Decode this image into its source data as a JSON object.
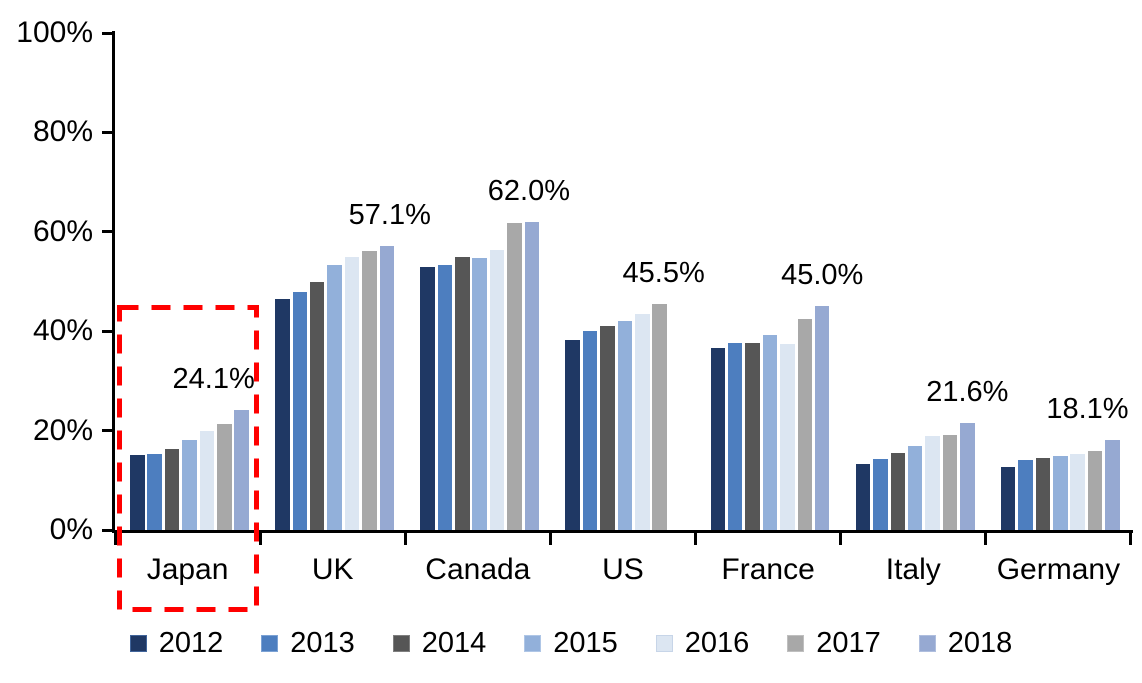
{
  "chart_data": {
    "type": "bar",
    "title": "",
    "xlabel": "",
    "ylabel": "",
    "categories": [
      "Japan",
      "UK",
      "Canada",
      "US",
      "France",
      "Italy",
      "Germany"
    ],
    "series": [
      {
        "name": "2012",
        "color": "#1F3864",
        "border": "#41659B",
        "values": [
          15.1,
          46.5,
          53.0,
          38.2,
          36.6,
          13.3,
          12.6
        ]
      },
      {
        "name": "2013",
        "color": "#4D7EBF",
        "border": "#7CA2D4",
        "values": [
          15.3,
          47.8,
          53.4,
          40.1,
          37.7,
          14.2,
          14.1
        ]
      },
      {
        "name": "2014",
        "color": "#565656",
        "border": "#7F7F7F",
        "values": [
          16.3,
          50.0,
          55.0,
          41.0,
          37.6,
          15.4,
          14.4
        ]
      },
      {
        "name": "2015",
        "color": "#92B0DA",
        "border": "#AFC6E6",
        "values": [
          18.2,
          53.3,
          54.7,
          42.1,
          39.3,
          16.9,
          14.8
        ]
      },
      {
        "name": "2016",
        "color": "#DCE6F2",
        "border": "#C7D5E8",
        "values": [
          20.0,
          54.9,
          56.3,
          43.5,
          37.4,
          19.0,
          15.2
        ]
      },
      {
        "name": "2017",
        "color": "#A8A8A8",
        "border": "#BFBFBF",
        "values": [
          21.3,
          56.1,
          61.7,
          45.5,
          42.4,
          19.2,
          15.8
        ]
      },
      {
        "name": "2018",
        "color": "#96A9D2",
        "border": "#AFBEDE",
        "values": [
          24.1,
          57.1,
          62.0,
          null,
          45.0,
          21.6,
          18.1
        ]
      }
    ],
    "data_labels": [
      "24.1%",
      "57.1%",
      "62.0%",
      "45.5%",
      "45.0%",
      "21.6%",
      "18.1%"
    ],
    "y_axis": {
      "tick_labels": [
        "0%",
        "20%",
        "40%",
        "60%",
        "80%",
        "100%"
      ],
      "min": 0,
      "max": 100,
      "step": 20
    },
    "grid": false,
    "legend": {
      "position": "bottom",
      "entries": [
        "2012",
        "2013",
        "2014",
        "2015",
        "2016",
        "2017",
        "2018"
      ]
    },
    "highlight": {
      "category": "Japan",
      "style": "dashed-rectangle",
      "color": "#FF0000"
    },
    "axis_color": "#000000"
  }
}
